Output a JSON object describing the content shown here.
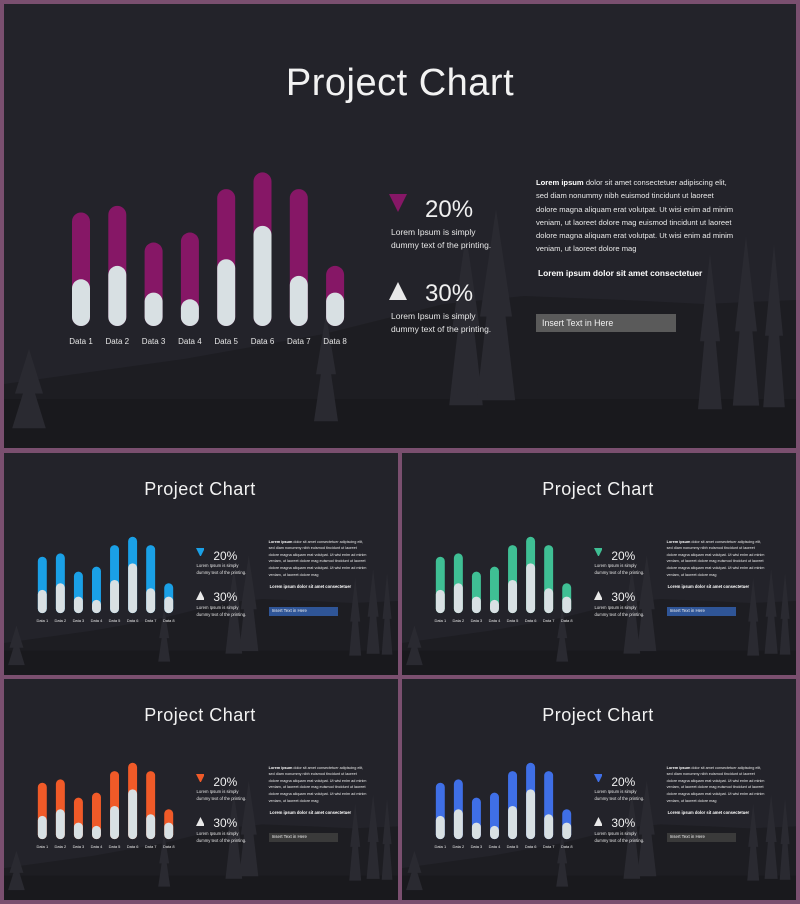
{
  "slides": [
    {
      "accent": "#861766"
    },
    {
      "accent": "#1aa0e6"
    },
    {
      "accent": "#3fbf94"
    },
    {
      "accent": "#f05a28"
    },
    {
      "accent": "#3f6fe6",
      "btn_color": "#3a3a3a"
    }
  ],
  "title": "Project Chart",
  "stat1": {
    "value": "20%",
    "text": "Lorem Ipsum is simply dummy text of the printing."
  },
  "stat2": {
    "value": "30%",
    "text": "Lorem Ipsum is simply dummy text of the printing."
  },
  "paragraph": {
    "lead": "Lorem ipsum",
    "body": "dolor sit amet consectetuer adipiscing elit, sed diam nonummy nibh euismod tincidunt ut laoreet dolore magna aliquam erat volutpat. Ut wisi enim ad minim veniam, ut laoreet dolore mag euismod tincidunt ut laoreet dolore magna aliquam erat volutpat. Ut wisi enim ad minim veniam, ut laoreet dolore mag"
  },
  "subheading": "Lorem ipsum dolor sit amet consectetuer",
  "button_label": "Insert Text in Here",
  "chart_data": {
    "type": "bar",
    "categories": [
      "Data 1",
      "Data 2",
      "Data 3",
      "Data 4",
      "Data 5",
      "Data 6",
      "Data 7",
      "Data 8"
    ],
    "series": [
      {
        "values": [
          28,
          36,
          20,
          16,
          40,
          60,
          30,
          20
        ]
      },
      {
        "values": [
          68,
          72,
          50,
          56,
          82,
          92,
          82,
          36
        ]
      }
    ],
    "ylim": [
      0,
      100
    ]
  },
  "colors": {
    "bg": "#23232a",
    "bar_light": "#d8e0e3",
    "button_default": "#5a5a5a",
    "button_blue": "#2f5597",
    "button_dark": "#3a3a3a"
  }
}
